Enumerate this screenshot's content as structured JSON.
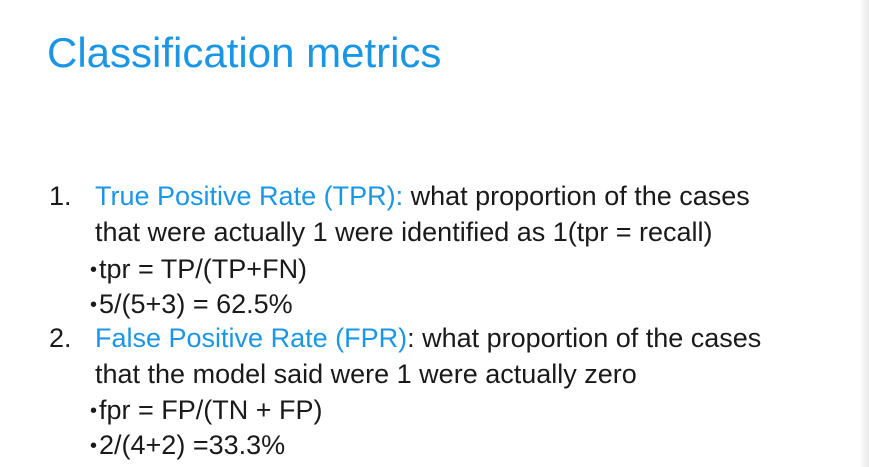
{
  "slide": {
    "title": "Classification metrics",
    "items": [
      {
        "number": "1.",
        "term": "True Positive Rate (TPR):",
        "line1": " what proportion of the cases",
        "line2": "that were actually 1 were identified as 1(tpr = recall)",
        "bullets": [
          "tpr = TP/(TP+FN)",
          "5/(5+3) = 62.5%"
        ]
      },
      {
        "number": "2.",
        "term": "False Positive Rate (FPR)",
        "line1": ": what proportion of the cases",
        "line2": "that the model said were 1 were actually zero",
        "bullets": [
          "fpr = FP/(TN + FP)",
          "2/(4+2) =33.3%"
        ]
      }
    ]
  },
  "colors": {
    "accent": "#1a96e6",
    "text": "#1a1a1a",
    "background": "#ffffff"
  }
}
